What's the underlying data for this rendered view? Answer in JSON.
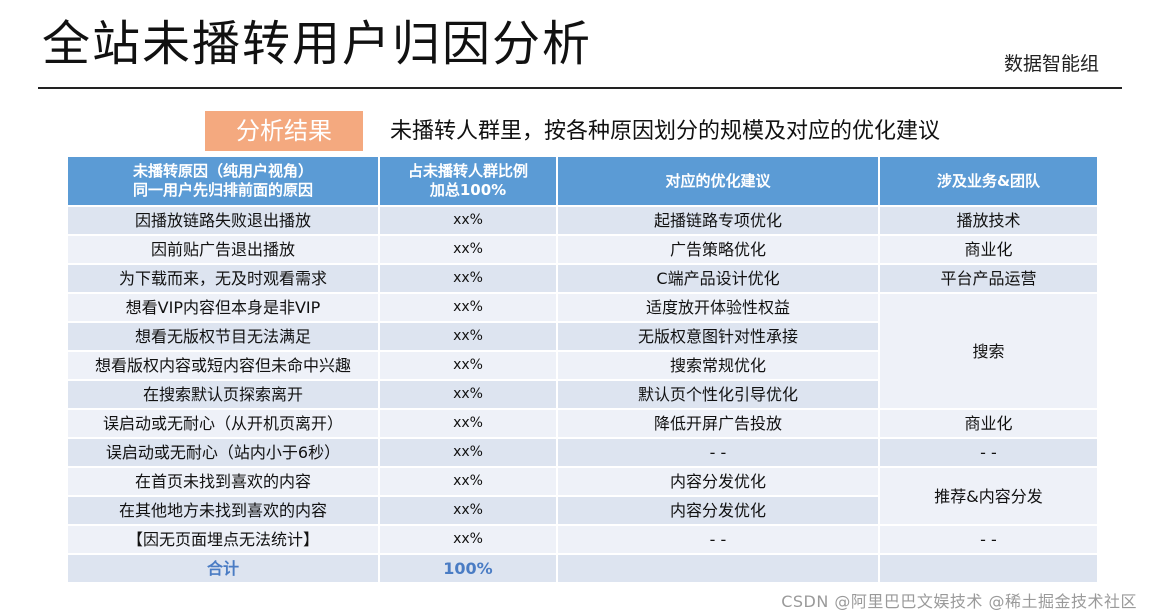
{
  "header": {
    "title": "全站未播转用户归因分析",
    "org": "数据智能组"
  },
  "section": {
    "badge": "分析结果",
    "subtitle": "未播转人群里，按各种原因划分的规模及对应的优化建议"
  },
  "table": {
    "headers": [
      [
        "未播转原因（纯用户视角）",
        "同一用户先归排前面的原因"
      ],
      [
        "占未播转人群比例",
        "加总100%"
      ],
      [
        "对应的优化建议"
      ],
      [
        "涉及业务&团队"
      ]
    ],
    "rows": [
      {
        "reason": "因播放链路失败退出播放",
        "ratio": "xx%",
        "suggestion": "起播链路专项优化",
        "team": "播放技术"
      },
      {
        "reason": "因前贴广告退出播放",
        "ratio": "xx%",
        "suggestion": "广告策略优化",
        "team": "商业化"
      },
      {
        "reason": "为下载而来，无及时观看需求",
        "ratio": "xx%",
        "suggestion": "C端产品设计优化",
        "team": "平台产品运营"
      },
      {
        "reason": "想看VIP内容但本身是非VIP",
        "ratio": "xx%",
        "suggestion": "适度放开体验性权益",
        "team": "搜索"
      },
      {
        "reason": "想看无版权节目无法满足",
        "ratio": "xx%",
        "suggestion": "无版权意图针对性承接",
        "team": null
      },
      {
        "reason": "想看版权内容或短内容但未命中兴趣",
        "ratio": "xx%",
        "suggestion": "搜索常规优化",
        "team": null
      },
      {
        "reason": "在搜索默认页探索离开",
        "ratio": "xx%",
        "suggestion": "默认页个性化引导优化",
        "team": null
      },
      {
        "reason": "误启动或无耐心（从开机页离开）",
        "ratio": "xx%",
        "suggestion": "降低开屏广告投放",
        "team": "商业化"
      },
      {
        "reason": "误启动或无耐心（站内小于6秒）",
        "ratio": "xx%",
        "suggestion": "- -",
        "team": "- -"
      },
      {
        "reason": "在首页未找到喜欢的内容",
        "ratio": "xx%",
        "suggestion": "内容分发优化",
        "team": "推荐&内容分发"
      },
      {
        "reason": "在其他地方未找到喜欢的内容",
        "ratio": "xx%",
        "suggestion": "内容分发优化",
        "team": null
      },
      {
        "reason": "【因无页面埋点无法统计】",
        "ratio": "xx%",
        "suggestion": "- -",
        "team": "- -"
      }
    ],
    "total": {
      "label": "合计",
      "ratio": "100%"
    }
  },
  "watermark": "CSDN @阿里巴巴文娱技术  @稀土掘金技术社区"
}
